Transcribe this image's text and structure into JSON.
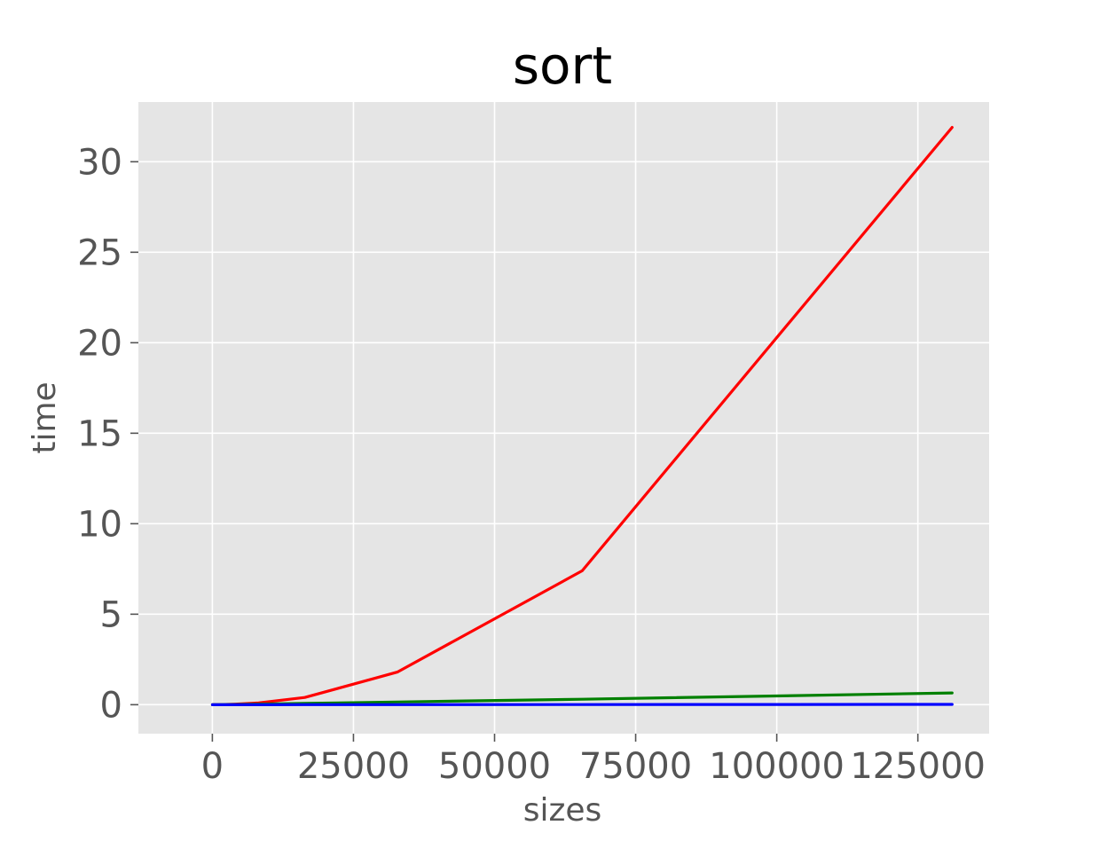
{
  "chart_data": {
    "type": "line",
    "title": "sort",
    "xlabel": "sizes",
    "ylabel": "time",
    "xlim": [
      -13107,
      137626
    ],
    "ylim": [
      -1.6,
      33.3
    ],
    "xticks": [
      0,
      25000,
      50000,
      75000,
      100000,
      125000
    ],
    "xtick_labels": [
      "0",
      "25000",
      "50000",
      "75000",
      "100000",
      "125000"
    ],
    "yticks": [
      0,
      5,
      10,
      15,
      20,
      25,
      30
    ],
    "ytick_labels": [
      "0",
      "5",
      "10",
      "15",
      "20",
      "25",
      "30"
    ],
    "grid": true,
    "legend": "none",
    "style": "ggplot",
    "colors": {
      "background": "#E5E5E5",
      "grid": "#FFFFFF",
      "tick": "#555555"
    },
    "series": [
      {
        "color": "#FF0000",
        "x": [
          16,
          32,
          64,
          128,
          256,
          512,
          1024,
          2048,
          4096,
          8192,
          16384,
          32768,
          65536,
          131072
        ],
        "y": [
          0,
          0,
          0,
          0,
          0,
          0,
          0.002,
          0.008,
          0.03,
          0.1,
          0.4,
          1.8,
          7.4,
          31.9
        ]
      },
      {
        "color": "#008000",
        "x": [
          16,
          32,
          64,
          128,
          256,
          512,
          1024,
          2048,
          4096,
          8192,
          16384,
          32768,
          65536,
          131072
        ],
        "y": [
          0,
          0,
          0,
          0,
          0,
          0,
          0.003,
          0.006,
          0.015,
          0.03,
          0.07,
          0.15,
          0.3,
          0.65
        ]
      },
      {
        "color": "#0000FF",
        "x": [
          16,
          32,
          64,
          128,
          256,
          512,
          1024,
          2048,
          4096,
          8192,
          16384,
          32768,
          65536,
          131072
        ],
        "y": [
          0,
          0,
          0,
          0,
          0,
          0,
          0,
          0,
          0,
          0,
          0.002,
          0.005,
          0.01,
          0.02
        ]
      }
    ]
  }
}
